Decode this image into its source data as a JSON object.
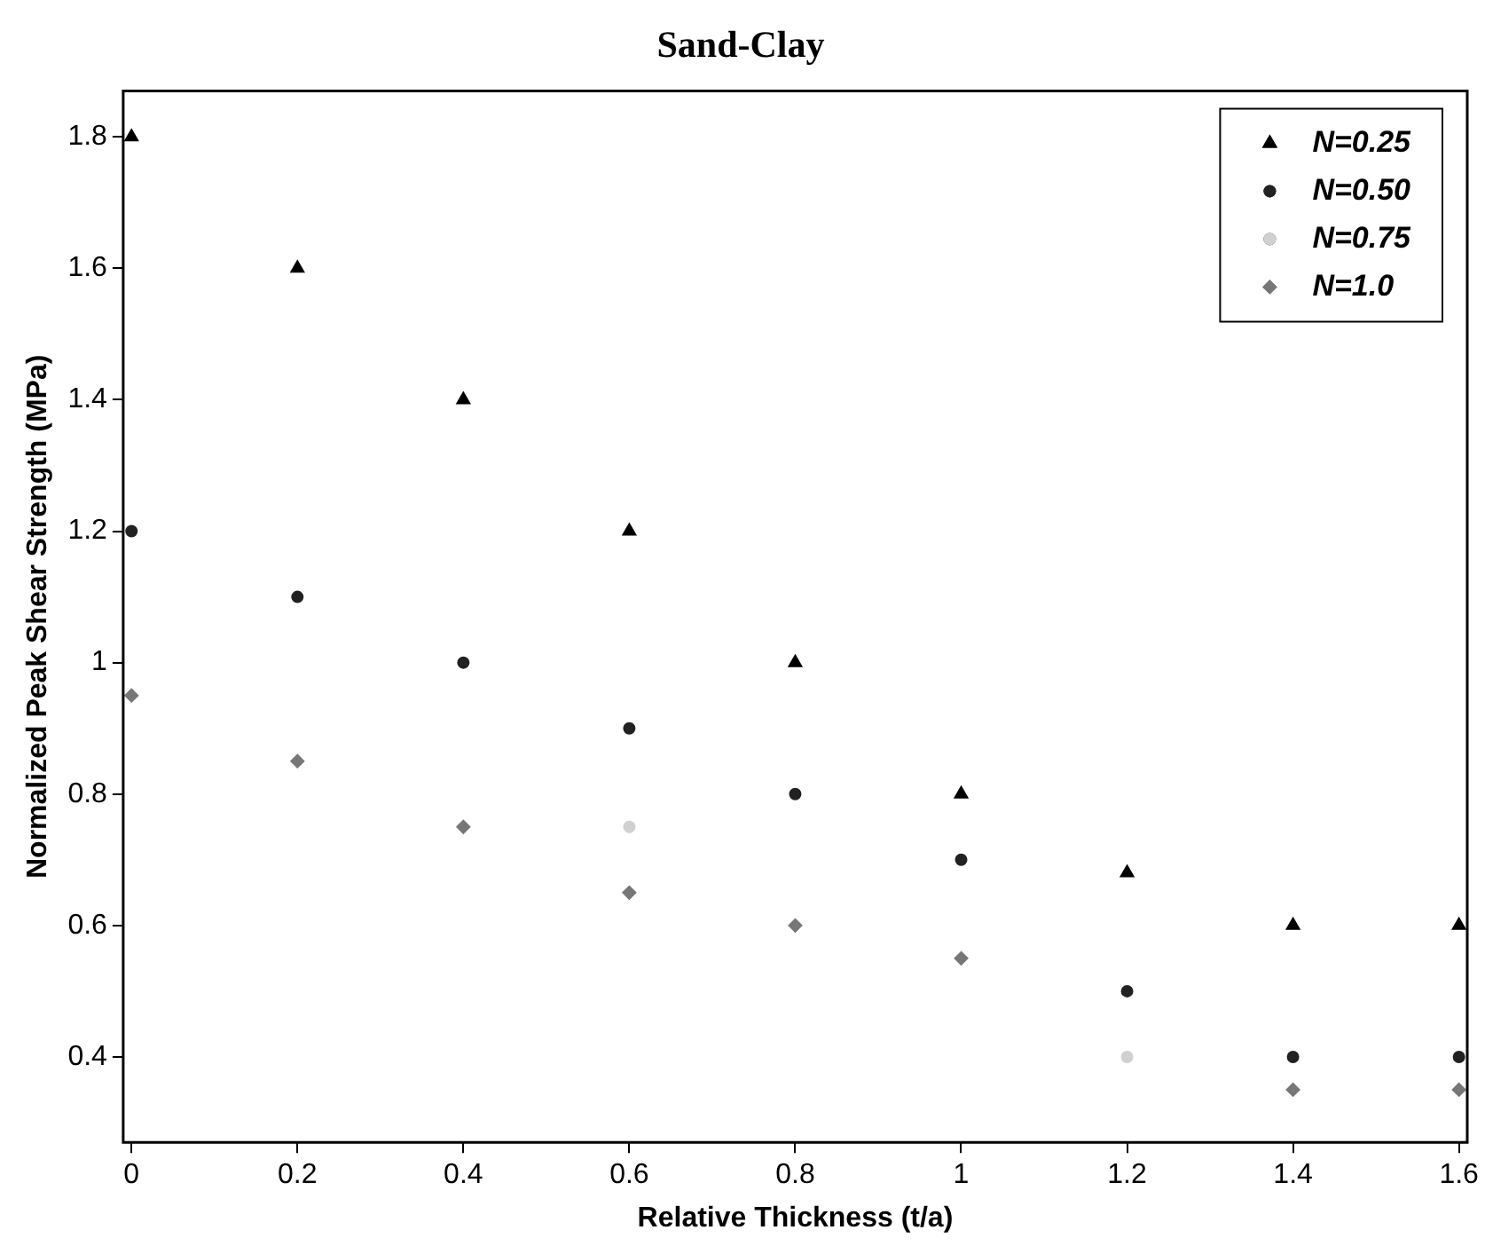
{
  "chart_data": {
    "type": "scatter",
    "title": "Sand-Clay",
    "xlabel": "Relative Thickness (t/a)",
    "ylabel": "Normalized Peak Shear Strength (MPa)",
    "x": [
      0,
      0.2,
      0.4,
      0.6,
      0.8,
      1.0,
      1.2,
      1.4,
      1.6
    ],
    "series": [
      {
        "name": "N=0.25",
        "color": "#000000",
        "marker": "triangle",
        "values": [
          1.8,
          1.6,
          1.4,
          1.2,
          1.0,
          0.8,
          0.68,
          0.6,
          0.6
        ]
      },
      {
        "name": "N=0.50",
        "color": "#222222",
        "marker": "circle",
        "values": [
          1.2,
          1.1,
          1.0,
          0.9,
          0.8,
          0.7,
          0.5,
          0.4,
          0.4
        ]
      },
      {
        "name": "N=0.75",
        "color": "#d0d0d0",
        "marker": "circle",
        "values": [
          null,
          null,
          null,
          0.75,
          null,
          null,
          0.4,
          null,
          null
        ]
      },
      {
        "name": "N=1.0",
        "color": "#777777",
        "marker": "diamond",
        "values": [
          0.95,
          0.85,
          0.75,
          0.65,
          0.6,
          0.55,
          null,
          0.35,
          0.35
        ]
      }
    ],
    "xlim": [
      -0.01,
      1.61
    ],
    "xticks": [
      0,
      0.2,
      0.4,
      0.6,
      0.8,
      {
        "value": 1,
        "label": "1"
      },
      1.2,
      1.4,
      1.6
    ],
    "ylim": [
      0.27,
      1.87
    ],
    "yticks": [
      0.4,
      0.6,
      0.8,
      {
        "value": 1,
        "label": "1"
      },
      1.2,
      1.4,
      1.6,
      1.8
    ],
    "grid": false,
    "legend": "top right"
  }
}
